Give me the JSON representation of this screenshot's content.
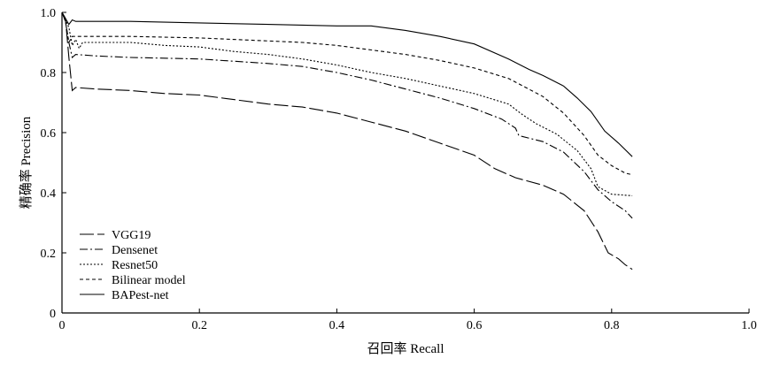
{
  "chart_data": {
    "type": "line",
    "title": "",
    "xlabel": "召回率 Recall",
    "ylabel": "精确率 Precision",
    "xlim": [
      0,
      1.0
    ],
    "ylim": [
      0,
      1.0
    ],
    "x_ticks": [
      "0",
      "0.2",
      "0.4",
      "0.6",
      "0.8",
      "1.0"
    ],
    "y_ticks": [
      "0",
      "0.2",
      "0.4",
      "0.6",
      "0.8",
      "1.0"
    ],
    "x_tick_values": [
      0,
      0.2,
      0.4,
      0.6,
      0.8,
      1.0
    ],
    "y_tick_values": [
      0,
      0.2,
      0.4,
      0.6,
      0.8,
      1.0
    ],
    "grid": false,
    "legend_position": "bottom-left",
    "series": [
      {
        "name": "VGG19",
        "dash": "16,4",
        "points": [
          [
            0.0,
            1.0
          ],
          [
            0.005,
            0.98
          ],
          [
            0.01,
            0.85
          ],
          [
            0.015,
            0.74
          ],
          [
            0.02,
            0.75
          ],
          [
            0.05,
            0.745
          ],
          [
            0.1,
            0.74
          ],
          [
            0.15,
            0.73
          ],
          [
            0.2,
            0.725
          ],
          [
            0.25,
            0.71
          ],
          [
            0.3,
            0.695
          ],
          [
            0.35,
            0.685
          ],
          [
            0.4,
            0.665
          ],
          [
            0.45,
            0.635
          ],
          [
            0.5,
            0.605
          ],
          [
            0.55,
            0.565
          ],
          [
            0.6,
            0.525
          ],
          [
            0.63,
            0.48
          ],
          [
            0.66,
            0.45
          ],
          [
            0.7,
            0.425
          ],
          [
            0.73,
            0.395
          ],
          [
            0.76,
            0.34
          ],
          [
            0.78,
            0.27
          ],
          [
            0.795,
            0.2
          ],
          [
            0.81,
            0.18
          ],
          [
            0.82,
            0.16
          ],
          [
            0.83,
            0.145
          ]
        ]
      },
      {
        "name": "Densenet",
        "dash": "9,3,2,3",
        "points": [
          [
            0.0,
            1.0
          ],
          [
            0.005,
            0.97
          ],
          [
            0.01,
            0.9
          ],
          [
            0.015,
            0.85
          ],
          [
            0.02,
            0.86
          ],
          [
            0.05,
            0.855
          ],
          [
            0.1,
            0.85
          ],
          [
            0.2,
            0.845
          ],
          [
            0.3,
            0.83
          ],
          [
            0.35,
            0.82
          ],
          [
            0.4,
            0.8
          ],
          [
            0.45,
            0.775
          ],
          [
            0.5,
            0.745
          ],
          [
            0.55,
            0.715
          ],
          [
            0.6,
            0.68
          ],
          [
            0.64,
            0.645
          ],
          [
            0.66,
            0.615
          ],
          [
            0.665,
            0.59
          ],
          [
            0.7,
            0.57
          ],
          [
            0.73,
            0.535
          ],
          [
            0.76,
            0.47
          ],
          [
            0.78,
            0.41
          ],
          [
            0.8,
            0.37
          ],
          [
            0.82,
            0.34
          ],
          [
            0.83,
            0.315
          ]
        ]
      },
      {
        "name": "Resnet50",
        "dash": "2,2",
        "points": [
          [
            0.0,
            1.0
          ],
          [
            0.01,
            0.95
          ],
          [
            0.015,
            0.89
          ],
          [
            0.02,
            0.91
          ],
          [
            0.025,
            0.88
          ],
          [
            0.03,
            0.9
          ],
          [
            0.05,
            0.9
          ],
          [
            0.1,
            0.9
          ],
          [
            0.15,
            0.89
          ],
          [
            0.2,
            0.885
          ],
          [
            0.25,
            0.87
          ],
          [
            0.3,
            0.86
          ],
          [
            0.35,
            0.845
          ],
          [
            0.4,
            0.825
          ],
          [
            0.45,
            0.8
          ],
          [
            0.5,
            0.78
          ],
          [
            0.55,
            0.755
          ],
          [
            0.6,
            0.73
          ],
          [
            0.65,
            0.695
          ],
          [
            0.67,
            0.66
          ],
          [
            0.69,
            0.63
          ],
          [
            0.72,
            0.595
          ],
          [
            0.75,
            0.54
          ],
          [
            0.77,
            0.48
          ],
          [
            0.78,
            0.42
          ],
          [
            0.8,
            0.395
          ],
          [
            0.83,
            0.39
          ]
        ]
      },
      {
        "name": "Bilinear model",
        "dash": "4,3",
        "points": [
          [
            0.0,
            1.0
          ],
          [
            0.005,
            0.97
          ],
          [
            0.01,
            0.9
          ],
          [
            0.015,
            0.92
          ],
          [
            0.02,
            0.92
          ],
          [
            0.05,
            0.92
          ],
          [
            0.1,
            0.92
          ],
          [
            0.2,
            0.915
          ],
          [
            0.3,
            0.905
          ],
          [
            0.35,
            0.9
          ],
          [
            0.4,
            0.89
          ],
          [
            0.45,
            0.875
          ],
          [
            0.5,
            0.86
          ],
          [
            0.55,
            0.84
          ],
          [
            0.6,
            0.815
          ],
          [
            0.65,
            0.78
          ],
          [
            0.7,
            0.72
          ],
          [
            0.73,
            0.665
          ],
          [
            0.76,
            0.59
          ],
          [
            0.78,
            0.525
          ],
          [
            0.8,
            0.49
          ],
          [
            0.82,
            0.465
          ],
          [
            0.83,
            0.46
          ]
        ]
      },
      {
        "name": "BAPest-net",
        "dash": "",
        "points": [
          [
            0.0,
            1.0
          ],
          [
            0.005,
            0.98
          ],
          [
            0.01,
            0.96
          ],
          [
            0.015,
            0.975
          ],
          [
            0.02,
            0.97
          ],
          [
            0.05,
            0.97
          ],
          [
            0.1,
            0.97
          ],
          [
            0.2,
            0.965
          ],
          [
            0.3,
            0.96
          ],
          [
            0.4,
            0.955
          ],
          [
            0.45,
            0.955
          ],
          [
            0.5,
            0.94
          ],
          [
            0.55,
            0.92
          ],
          [
            0.6,
            0.895
          ],
          [
            0.65,
            0.845
          ],
          [
            0.68,
            0.81
          ],
          [
            0.7,
            0.79
          ],
          [
            0.73,
            0.755
          ],
          [
            0.75,
            0.715
          ],
          [
            0.77,
            0.67
          ],
          [
            0.79,
            0.605
          ],
          [
            0.81,
            0.565
          ],
          [
            0.83,
            0.52
          ]
        ]
      }
    ]
  }
}
